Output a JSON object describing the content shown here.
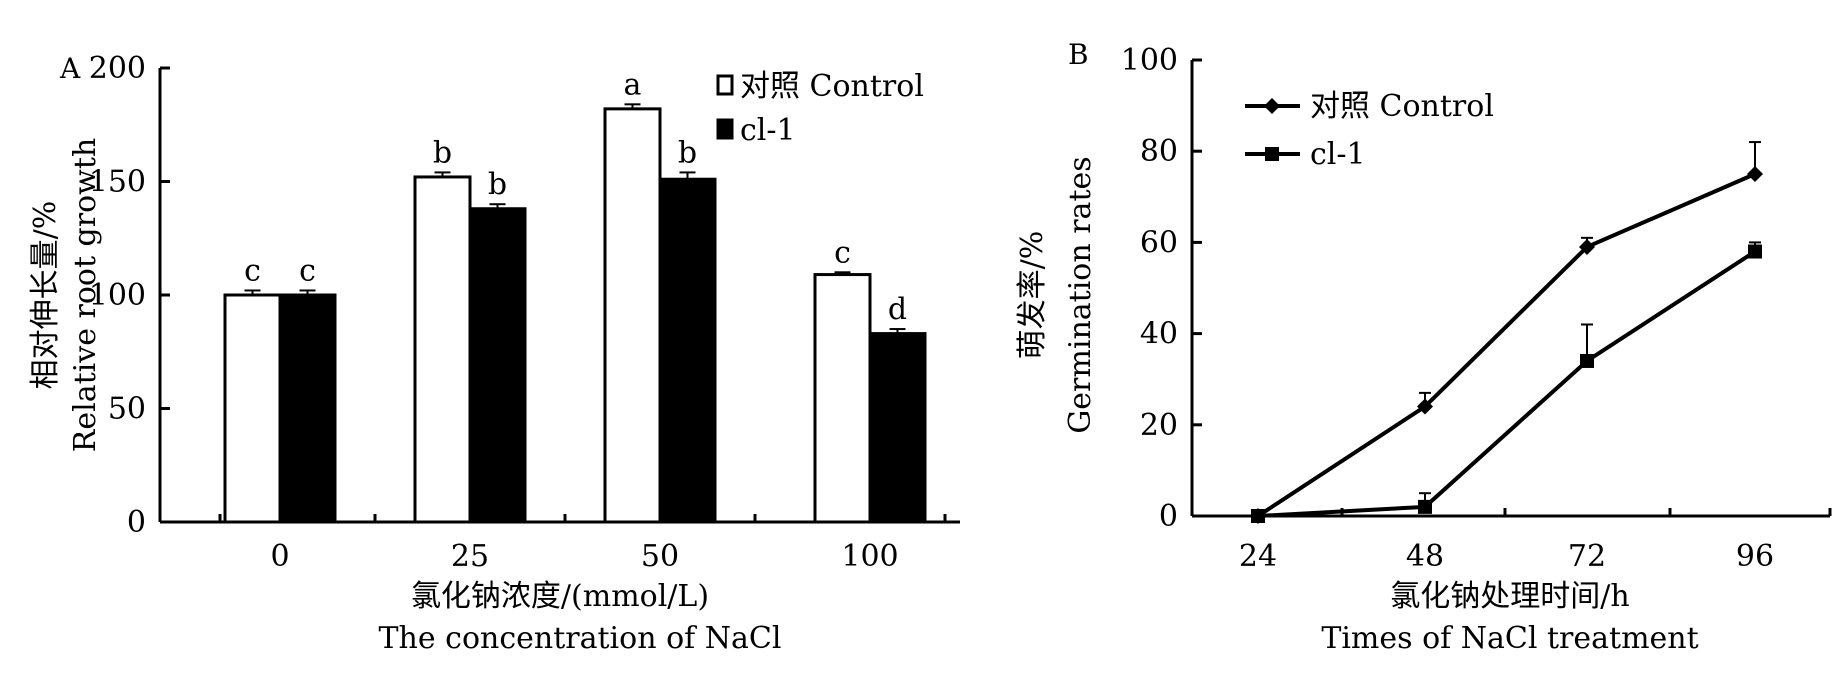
{
  "chart_data": [
    {
      "type": "bar",
      "panel_label": "A",
      "categories": [
        "0",
        "25",
        "50",
        "100"
      ],
      "series": [
        {
          "name": "对照 Control",
          "values": [
            100,
            152,
            182,
            109
          ],
          "errors": [
            2,
            2,
            2,
            1
          ],
          "letters": [
            "c",
            "b",
            "a",
            "c"
          ],
          "color": "#ffffff"
        },
        {
          "name": "cl-1",
          "values": [
            100,
            138,
            151,
            83
          ],
          "errors": [
            2,
            2,
            3,
            2
          ],
          "letters": [
            "c",
            "b",
            "b",
            "d"
          ],
          "color": "#000000"
        }
      ],
      "ylim": [
        0,
        200
      ],
      "yticks": [
        0,
        50,
        100,
        150,
        200
      ],
      "ylabel_cn": "相对伸长量/%",
      "ylabel_en": "Relative root growth",
      "xlabel_cn": "氯化钠浓度/(mmol/L)",
      "xlabel_en": "The concentration of NaCl",
      "legend_position": "top-right"
    },
    {
      "type": "line",
      "panel_label": "B",
      "x": [
        24,
        48,
        72,
        96
      ],
      "series": [
        {
          "name": "对照 Control",
          "values": [
            0,
            24,
            59,
            75
          ],
          "errors": [
            0,
            3,
            2,
            7
          ],
          "marker": "diamond"
        },
        {
          "name": "cl-1",
          "values": [
            0,
            2,
            34,
            58
          ],
          "errors": [
            0,
            3,
            8,
            2
          ],
          "marker": "square"
        }
      ],
      "ylim": [
        0,
        100
      ],
      "yticks": [
        0,
        20,
        40,
        60,
        80,
        100
      ],
      "ylabel_cn": "萌发率/%",
      "ylabel_en": "Germination rates",
      "xlabel_cn": "氯化钠处理时间/h",
      "xlabel_en": "Times of NaCl treatment",
      "legend_position": "top-left"
    }
  ]
}
